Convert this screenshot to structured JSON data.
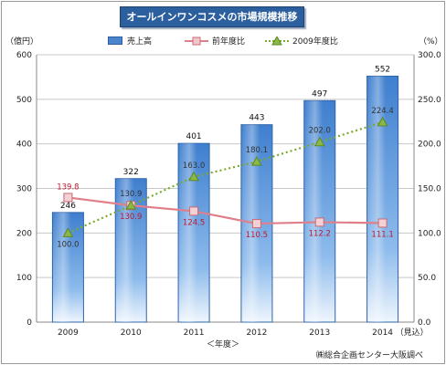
{
  "chart_data": {
    "type": "bar",
    "title": "オールインワンコスメの市場規模推移",
    "categories": [
      "2009",
      "2010",
      "2011",
      "2012",
      "2013",
      "2014"
    ],
    "last_category_note": "（見込）",
    "series": [
      {
        "name": "売上高",
        "kind": "bar",
        "axis": "left",
        "color": "#4a86d0",
        "values": [
          246,
          322,
          401,
          443,
          497,
          552
        ]
      },
      {
        "name": "前年度比",
        "kind": "line",
        "axis": "right",
        "color": "#e07f8a",
        "values": [
          139.8,
          130.9,
          124.5,
          110.5,
          112.2,
          111.1
        ]
      },
      {
        "name": "2009年度比",
        "kind": "line",
        "axis": "right",
        "color": "#79ab2c",
        "values": [
          100.0,
          130.9,
          163.0,
          180.1,
          202.0,
          224.4
        ]
      }
    ],
    "yleft": {
      "unit": "（億円）",
      "range": [
        0,
        600
      ],
      "ticks": [
        "0",
        "100",
        "200",
        "300",
        "400",
        "500",
        "600"
      ]
    },
    "yright": {
      "unit": "（%）",
      "range": [
        0,
        300
      ],
      "ticks": [
        "0.0",
        "50.0",
        "100.0",
        "150.0",
        "200.0",
        "250.0",
        "300.0"
      ]
    },
    "xlabel": "＜年度＞",
    "grid": true,
    "legend": "top",
    "source": "㈱総合企画センター大阪調べ"
  }
}
